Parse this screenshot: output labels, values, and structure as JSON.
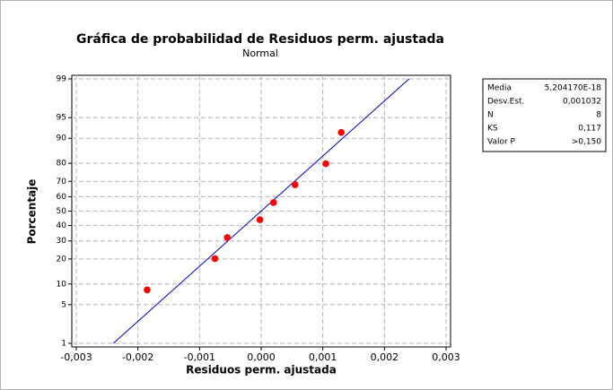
{
  "chart_data": {
    "type": "probability",
    "title": "Gráfica de probabilidad de Residuos perm. ajustada",
    "subtitle": "Normal",
    "x_label": "Residuos perm. ajustada",
    "y_label": "Porcentaje",
    "x": [
      -0.00185,
      -0.00075,
      -0.00055,
      -2e-05,
      0.0002,
      0.00055,
      0.00105,
      0.0013
    ],
    "values": [
      8.3,
      20.2,
      32.1,
      44.0,
      56.0,
      67.9,
      79.8,
      91.7
    ],
    "color": "#ff0000",
    "fit_line": {
      "x": [
        -0.0024,
        0.0024
      ],
      "y": [
        1,
        99
      ],
      "color": "#0000cc"
    },
    "xlim": [
      -0.003,
      0.003
    ],
    "ylim": [
      1,
      99
    ],
    "xticks": [
      {
        "value": -0.003,
        "label": "-0,003"
      },
      {
        "value": -0.002,
        "label": "-0,002"
      },
      {
        "value": -0.001,
        "label": "-0,001"
      },
      {
        "value": 0,
        "label": "0,000"
      },
      {
        "value": 0.001,
        "label": "0,001"
      },
      {
        "value": 0.002,
        "label": "0,002"
      },
      {
        "value": 0.003,
        "label": "0,003"
      }
    ],
    "yticks": [
      1,
      5,
      10,
      20,
      30,
      40,
      50,
      60,
      70,
      80,
      90,
      95,
      99
    ],
    "grid": true,
    "stats": [
      [
        "Media",
        "5,204170E-18"
      ],
      [
        "Desv.Est.",
        "0,001032"
      ],
      [
        "N",
        "8"
      ],
      [
        "KS",
        "0,117"
      ],
      [
        "Valor P",
        ">0,150"
      ]
    ]
  }
}
